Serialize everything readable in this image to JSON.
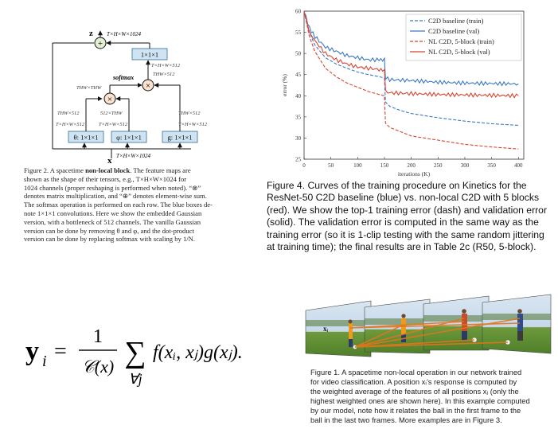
{
  "fig2": {
    "block_labels": {
      "z": "z",
      "x": "x",
      "out_conv": "1×1×1",
      "theta": "θ: 1×1×1",
      "phi": "φ: 1×1×1",
      "g": "g: 1×1×1",
      "softmax": "softmax"
    },
    "shape_labels": {
      "top": "T×H×W×1024",
      "bottom": "T×H×W×1024",
      "after_conv": "T×H×W×512",
      "after_mul": "THW×512",
      "thw_thw": "THW×THW",
      "mid_512_thw": "512×THW",
      "theta_thw": "THW×512",
      "theta_shape": "T×H×W×512",
      "phi_shape": "T×H×W×512",
      "g_thw": "THW×512",
      "g_shape": "T×H×W×512"
    },
    "caption_lines": [
      [
        "Figure 2. A spacetime ",
        "non-local block",
        ". The feature maps are"
      ],
      "shown as the shape of their tensors, e.g., T×H×W×1024 for",
      "1024 channels (proper reshaping is performed when noted). “⊗”",
      "denotes matrix multiplication, and “⊕” denotes element-wise sum.",
      "The softmax operation is performed on each row. The blue boxes de-",
      "note 1×1×1 convolutions. Here we show the embedded Gaussian",
      "version, with a bottleneck of 512 channels. The vanilla Gaussian",
      "version can be done by removing θ and φ, and the dot-product",
      "version can be done by replacing softmax with scaling by 1/N."
    ]
  },
  "fig4": {
    "caption_lines": [
      "Figure 4. Curves of the training procedure on Kinetics for the",
      "ResNet-50 C2D baseline (blue) vs. non-local C2D with 5 blocks",
      "(red). We show the top-1 training error (dash) and validation error",
      "(solid). The validation error is computed in the same way as the",
      "training error (so it is 1-clip testing with the same random jittering",
      "at training time); the final results are in Table 2c (R50, 5-block)."
    ],
    "ref_text": "2c"
  },
  "equation": {
    "lhs": "y",
    "lhs_sub": "i",
    "eq": "=",
    "frac_num": "1",
    "frac_den": "𝒞(x)",
    "sum": "∑",
    "sum_sub": "∀j",
    "body": "f(xᵢ, xⱼ)g(xⱼ)."
  },
  "fig1": {
    "frame_label": "xᵢ",
    "caption_lines": [
      "Figure 1. A spacetime non-local operation in our network trained",
      "for video classification. A position xᵢ’s response is computed by",
      "the weighted average of the features of all positions xⱼ (only the",
      "highest weighted ones are shown here). In this example computed",
      "by our model, note how it relates the ball in the first frame to the",
      "ball in the last two frames. More examples are in Figure 3."
    ],
    "ref_text": "3"
  },
  "chart_data": {
    "type": "line",
    "xlabel": "iterations (K)",
    "ylabel": "error (%)",
    "xlim": [
      0,
      410
    ],
    "ylim": [
      25,
      60
    ],
    "xticks": [
      0,
      50,
      100,
      150,
      200,
      250,
      300,
      350,
      400
    ],
    "yticks": [
      25,
      30,
      35,
      40,
      45,
      50,
      55,
      60
    ],
    "legend_position": "top-right",
    "series": [
      {
        "name": "C2D baseline (train)",
        "color": "#3a78c5",
        "dash": true,
        "x": [
          0,
          10,
          20,
          40,
          60,
          80,
          100,
          120,
          140,
          150,
          152,
          160,
          180,
          200,
          250,
          300,
          350,
          400
        ],
        "y": [
          60,
          55,
          52,
          49,
          47.5,
          46.5,
          45.6,
          45,
          44.5,
          44.2,
          38.5,
          37.5,
          36.5,
          35.8,
          34.8,
          34,
          33.4,
          33
        ]
      },
      {
        "name": "C2D baseline (val)",
        "color": "#3a78c5",
        "dash": false,
        "x": [
          0,
          10,
          20,
          40,
          60,
          80,
          100,
          120,
          140,
          150,
          152,
          160,
          200,
          250,
          300,
          350,
          400
        ],
        "y": [
          60,
          56,
          54,
          51.5,
          50.5,
          49.5,
          49,
          48.5,
          48.5,
          48.5,
          44.2,
          43.8,
          43.6,
          43.2,
          43,
          42.9,
          42.8
        ]
      },
      {
        "name": "NL C2D, 5-block (train)",
        "color": "#d8432f",
        "dash": true,
        "x": [
          0,
          10,
          20,
          40,
          60,
          80,
          100,
          120,
          140,
          150,
          152,
          160,
          180,
          200,
          250,
          300,
          350,
          400
        ],
        "y": [
          60,
          54,
          50.5,
          46.5,
          44.5,
          43,
          42,
          41,
          40.3,
          40,
          33.5,
          32.5,
          31.5,
          30.5,
          29.5,
          28.5,
          27.9,
          27.4
        ]
      },
      {
        "name": "NL C2D, 5-block (val)",
        "color": "#d8432f",
        "dash": false,
        "x": [
          0,
          10,
          20,
          40,
          60,
          80,
          100,
          120,
          140,
          150,
          152,
          160,
          200,
          250,
          300,
          350,
          400
        ],
        "y": [
          60,
          55,
          53,
          50,
          48.5,
          47.5,
          46.8,
          46.5,
          46.2,
          46,
          41,
          40.7,
          40.5,
          40.3,
          40.2,
          40.1,
          40
        ]
      }
    ]
  }
}
